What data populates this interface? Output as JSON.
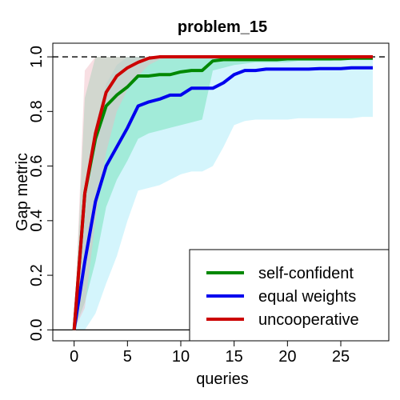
{
  "chart_data": {
    "type": "line",
    "title": "problem_15",
    "xlabel": "queries",
    "ylabel": "Gap metric",
    "xlim": [
      -2,
      29.5
    ],
    "ylim": [
      -0.04,
      1.05
    ],
    "xticks": [
      0,
      5,
      10,
      15,
      20,
      25
    ],
    "yticks": [
      0.0,
      0.2,
      0.4,
      0.6,
      0.8,
      1.0
    ],
    "xtick_labels": [
      "0",
      "5",
      "10",
      "15",
      "20",
      "25"
    ],
    "ytick_labels": [
      "0.0",
      "0.2",
      "0.4",
      "0.6",
      "0.8",
      "1.0"
    ],
    "reference_lines": [
      {
        "y": 1.0,
        "style": "dashed",
        "color": "#000000"
      },
      {
        "y": 0.0,
        "style": "solid",
        "color": "#000000"
      }
    ],
    "legend": {
      "position": "bottom-right"
    },
    "series": [
      {
        "name": "self-confident",
        "color": "#008800",
        "band_color": "#66e0b0",
        "x": [
          0,
          1,
          2,
          3,
          4,
          5,
          6,
          7,
          8,
          9,
          10,
          11,
          12,
          13,
          14,
          15,
          16,
          17,
          18,
          19,
          20,
          21,
          22,
          23,
          24,
          25,
          26,
          27,
          28
        ],
        "values": [
          0.0,
          0.5,
          0.7,
          0.82,
          0.86,
          0.89,
          0.93,
          0.93,
          0.935,
          0.935,
          0.945,
          0.95,
          0.95,
          0.985,
          0.99,
          0.99,
          0.99,
          0.99,
          0.99,
          0.99,
          0.993,
          0.993,
          0.993,
          0.993,
          0.993,
          0.993,
          0.995,
          0.995,
          0.995
        ],
        "lower": [
          0.0,
          0.1,
          0.25,
          0.45,
          0.55,
          0.62,
          0.7,
          0.72,
          0.73,
          0.74,
          0.75,
          0.76,
          0.77,
          0.95,
          0.96,
          0.97,
          0.975,
          0.98,
          0.98,
          0.98,
          0.98,
          0.985,
          0.985,
          0.985,
          0.985,
          0.99,
          0.99,
          0.99,
          0.99
        ],
        "upper": [
          0.0,
          0.85,
          1.0,
          1.0,
          1.0,
          1.0,
          1.0,
          1.0,
          1.0,
          1.0,
          1.0,
          1.0,
          1.0,
          1.0,
          1.0,
          1.0,
          1.0,
          1.0,
          1.0,
          1.0,
          1.0,
          1.0,
          1.0,
          1.0,
          1.0,
          1.0,
          1.0,
          1.0,
          1.0
        ]
      },
      {
        "name": "equal weights",
        "color": "#0000ee",
        "band_color": "#a0e8f8",
        "x": [
          0,
          1,
          2,
          3,
          4,
          5,
          6,
          7,
          8,
          9,
          10,
          11,
          12,
          13,
          14,
          15,
          16,
          17,
          18,
          19,
          20,
          21,
          22,
          23,
          24,
          25,
          26,
          27,
          28
        ],
        "values": [
          0.0,
          0.25,
          0.47,
          0.6,
          0.67,
          0.74,
          0.82,
          0.835,
          0.845,
          0.86,
          0.86,
          0.885,
          0.885,
          0.885,
          0.905,
          0.935,
          0.95,
          0.95,
          0.955,
          0.955,
          0.955,
          0.955,
          0.955,
          0.957,
          0.957,
          0.957,
          0.96,
          0.96,
          0.96
        ],
        "lower": [
          0.0,
          0.0,
          0.06,
          0.17,
          0.27,
          0.4,
          0.51,
          0.52,
          0.53,
          0.55,
          0.57,
          0.58,
          0.58,
          0.6,
          0.67,
          0.75,
          0.765,
          0.77,
          0.77,
          0.77,
          0.77,
          0.775,
          0.775,
          0.775,
          0.775,
          0.775,
          0.775,
          0.78,
          0.78
        ],
        "upper": [
          0.0,
          0.45,
          0.75,
          0.9,
          0.97,
          1.0,
          1.0,
          1.0,
          1.0,
          1.0,
          1.0,
          1.0,
          1.0,
          1.0,
          1.0,
          1.0,
          1.0,
          1.0,
          1.0,
          1.0,
          1.0,
          1.0,
          1.0,
          1.0,
          1.0,
          1.0,
          1.0,
          1.0,
          1.0
        ]
      },
      {
        "name": "uncooperative",
        "color": "#cc0000",
        "band_color": "#f0b8c0",
        "x": [
          0,
          1,
          2,
          3,
          4,
          5,
          6,
          7,
          8,
          9,
          10,
          11,
          12,
          13,
          14,
          15,
          16,
          17,
          18,
          19,
          20,
          21,
          22,
          23,
          24,
          25,
          26,
          27,
          28
        ],
        "values": [
          0.0,
          0.5,
          0.72,
          0.87,
          0.93,
          0.96,
          0.98,
          0.995,
          1.0,
          1.0,
          1.0,
          1.0,
          1.0,
          1.0,
          1.0,
          1.0,
          1.0,
          1.0,
          1.0,
          1.0,
          1.0,
          1.0,
          1.0,
          1.0,
          1.0,
          1.0,
          1.0,
          1.0,
          1.0
        ],
        "lower": [
          0.0,
          0.08,
          0.4,
          0.65,
          0.8,
          0.88,
          0.93,
          0.97,
          0.99,
          1.0,
          1.0,
          1.0,
          1.0,
          1.0,
          1.0,
          1.0,
          1.0,
          1.0,
          1.0,
          1.0,
          1.0,
          1.0,
          1.0,
          1.0,
          1.0,
          1.0,
          1.0,
          1.0,
          1.0
        ],
        "upper": [
          0.0,
          0.95,
          1.0,
          1.0,
          1.0,
          1.0,
          1.0,
          1.0,
          1.0,
          1.0,
          1.0,
          1.0,
          1.0,
          1.0,
          1.0,
          1.0,
          1.0,
          1.0,
          1.0,
          1.0,
          1.0,
          1.0,
          1.0,
          1.0,
          1.0,
          1.0,
          1.0,
          1.0,
          1.0
        ]
      }
    ]
  }
}
